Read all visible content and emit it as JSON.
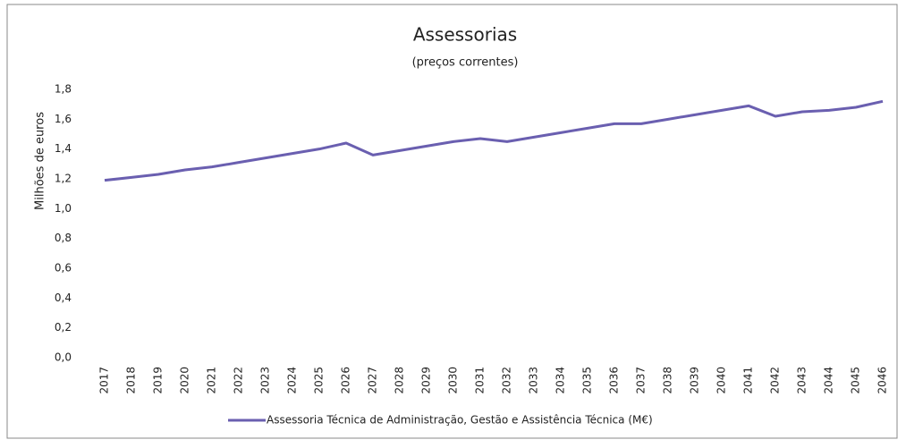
{
  "chart_data": {
    "type": "line",
    "title": "Assessorias",
    "subtitle": "(preços correntes)",
    "y_label": "Milhões de euros",
    "categories": [
      "2017",
      "2018",
      "2019",
      "2020",
      "2021",
      "2022",
      "2023",
      "2024",
      "2025",
      "2026",
      "2027",
      "2028",
      "2029",
      "2030",
      "2031",
      "2032",
      "2033",
      "2034",
      "2035",
      "2036",
      "2037",
      "2038",
      "2039",
      "2040",
      "2041",
      "2042",
      "2043",
      "2044",
      "2045",
      "2046"
    ],
    "series": [
      {
        "name": "Assessoria Técnica de Administração, Gestão e Assistência Técnica (M€)",
        "color": "#6a5fb0",
        "values": [
          1.19,
          1.21,
          1.23,
          1.26,
          1.28,
          1.31,
          1.34,
          1.37,
          1.4,
          1.44,
          1.36,
          1.39,
          1.42,
          1.45,
          1.47,
          1.45,
          1.48,
          1.51,
          1.54,
          1.57,
          1.57,
          1.6,
          1.63,
          1.66,
          1.69,
          1.62,
          1.65,
          1.66,
          1.68,
          1.72
        ]
      }
    ],
    "ylim": [
      0,
      1.8
    ],
    "yticks": [
      {
        "value": 0,
        "label": "0,0"
      },
      {
        "value": 0.2,
        "label": "0,2"
      },
      {
        "value": 0.4,
        "label": "0,4"
      },
      {
        "value": 0.6,
        "label": "0,6"
      },
      {
        "value": 0.8,
        "label": "0,8"
      },
      {
        "value": 1.0,
        "label": "1,0"
      },
      {
        "value": 1.2,
        "label": "1,2"
      },
      {
        "value": 1.4,
        "label": "1,4"
      },
      {
        "value": 1.6,
        "label": "1,6"
      },
      {
        "value": 1.8,
        "label": "1,8"
      }
    ],
    "grid": false,
    "legend": "bottom"
  }
}
